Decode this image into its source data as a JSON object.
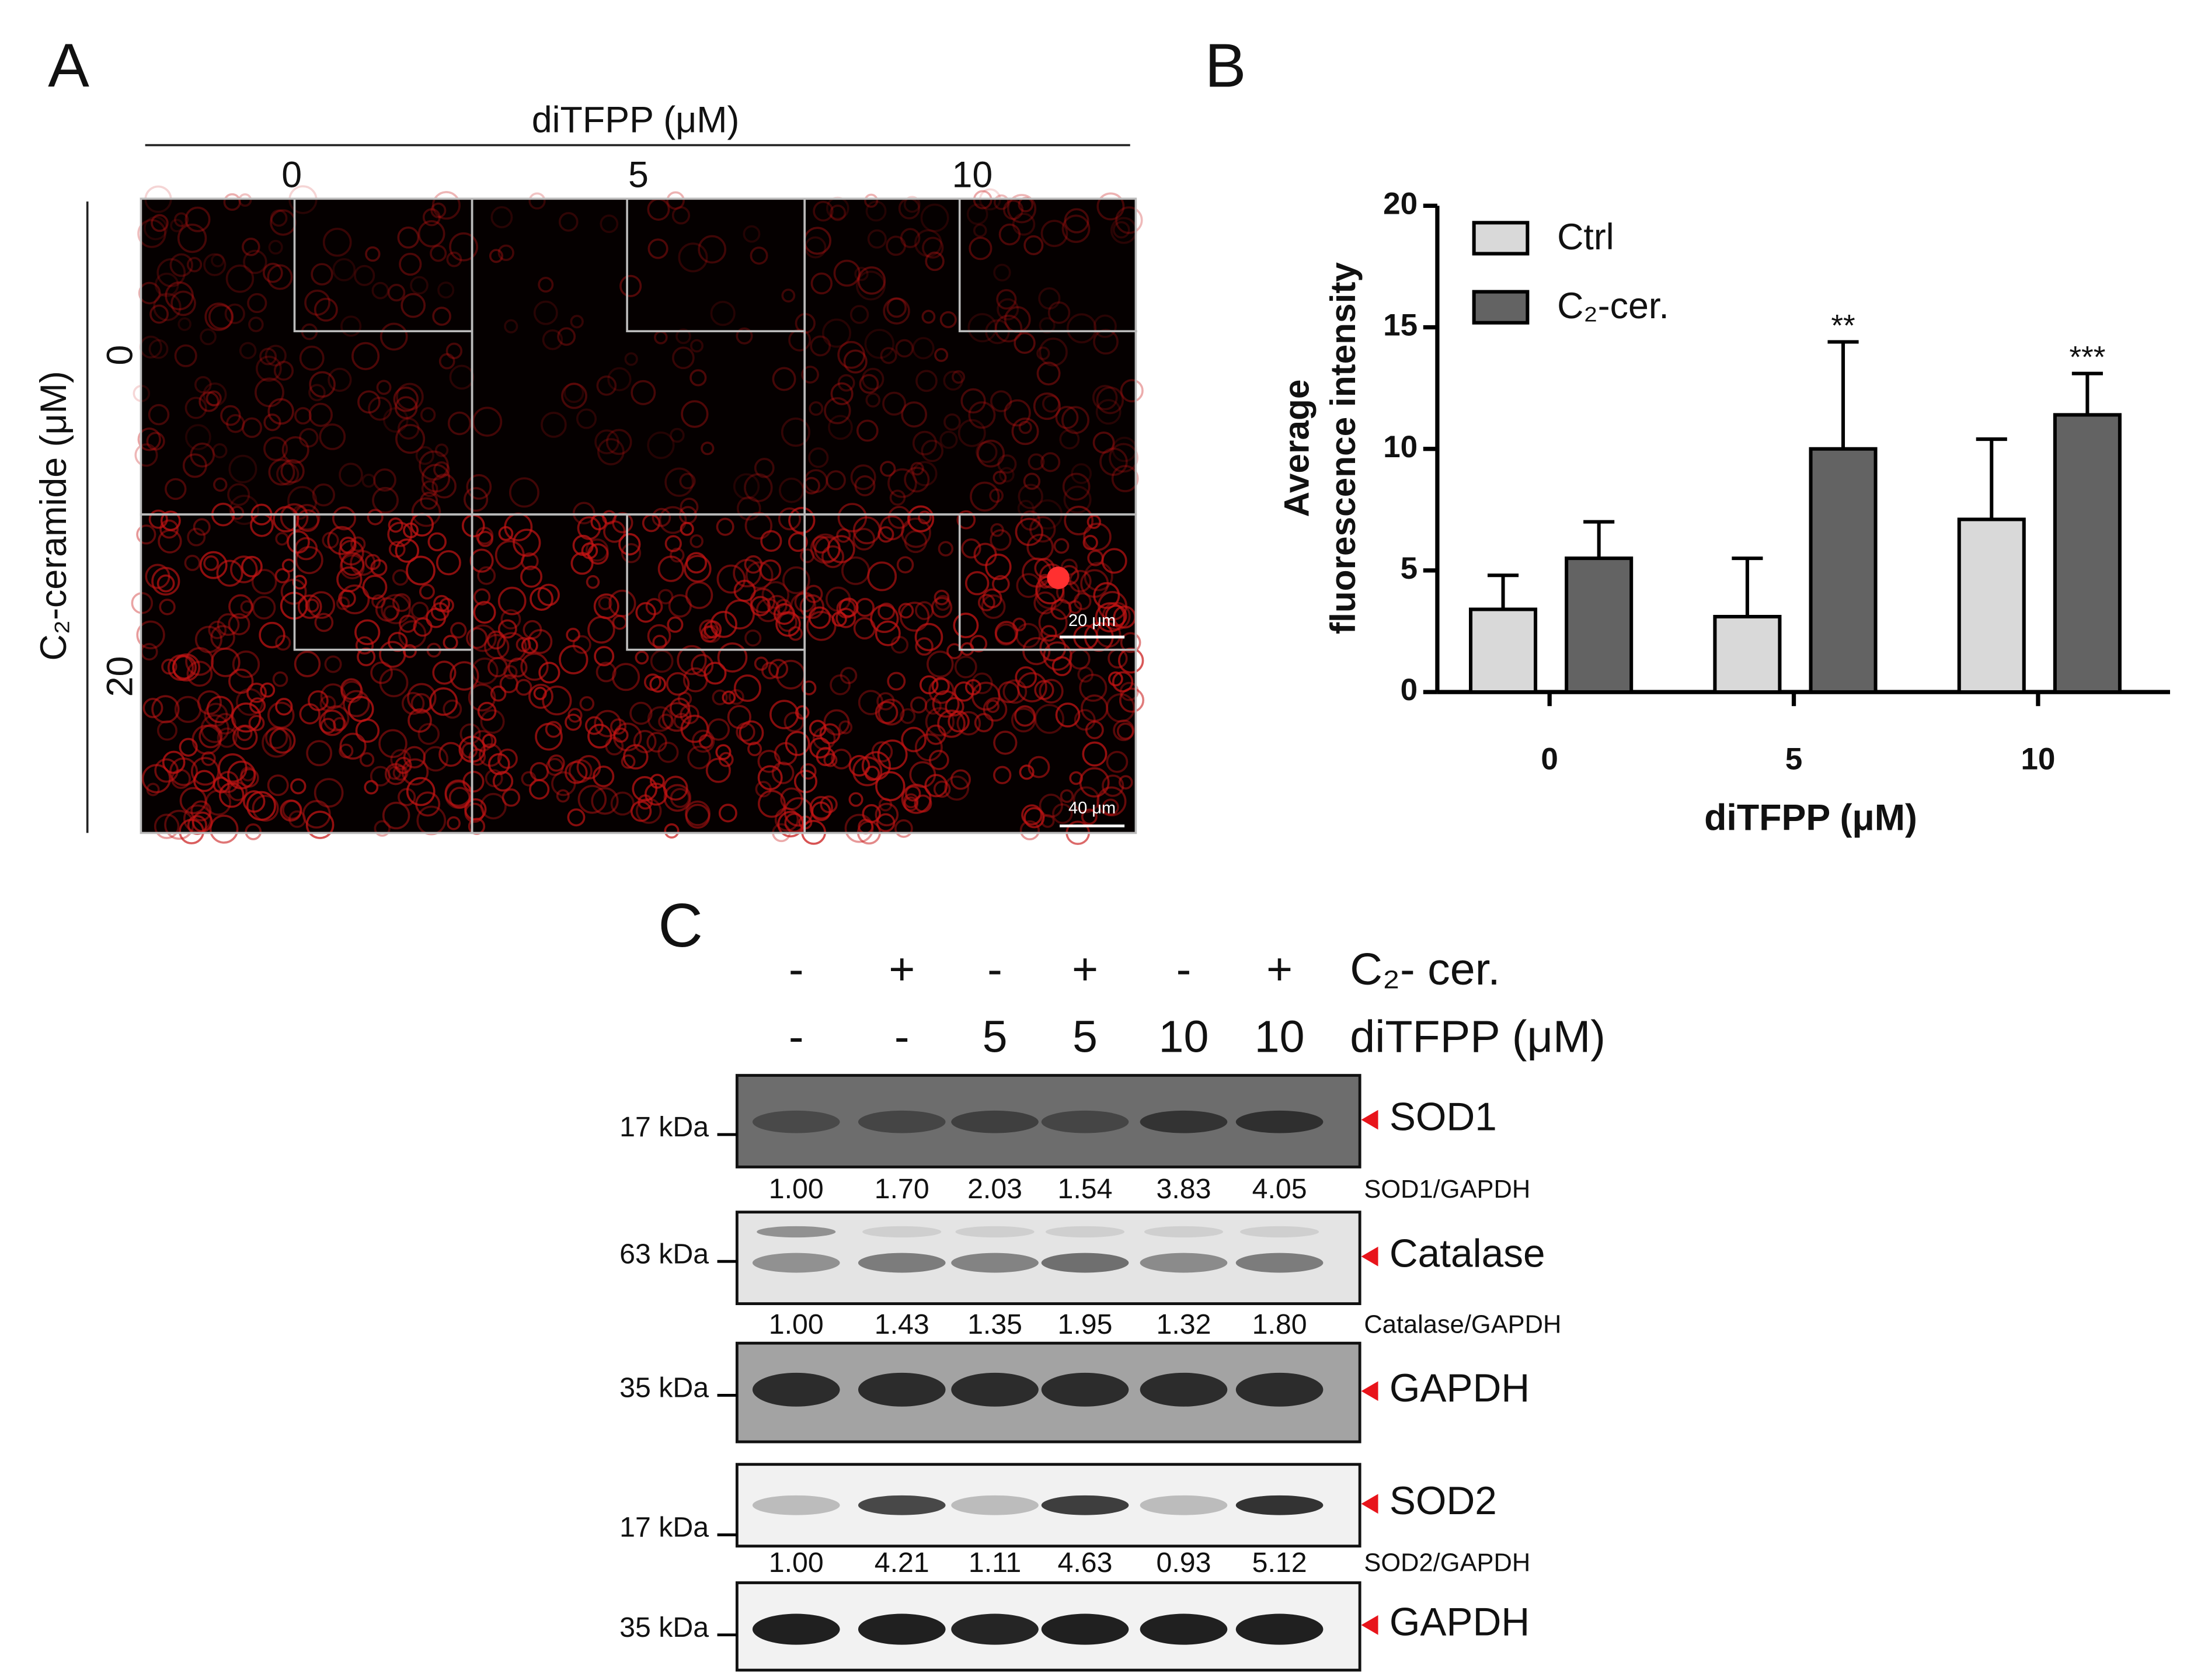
{
  "panel_a": {
    "label": "A",
    "column_title": "diTFPP (μM)",
    "columns": [
      "0",
      "5",
      "10"
    ],
    "row_title": "C₂-ceramide (μM)",
    "rows": [
      "0",
      "20"
    ],
    "inset_scale_bar": "20 μm",
    "scale_bar": "40 μm"
  },
  "chart_data": {
    "type": "bar",
    "panel_label": "B",
    "categories": [
      "0",
      "5",
      "10"
    ],
    "series": [
      {
        "name": "Ctrl",
        "color": "#d9d9d9",
        "values": [
          3.4,
          3.1,
          7.1
        ],
        "errors": [
          1.4,
          2.4,
          3.3
        ]
      },
      {
        "name": "C₂-cer.",
        "color": "#636363",
        "values": [
          5.5,
          10.0,
          11.4
        ],
        "errors": [
          1.5,
          4.4,
          1.7
        ],
        "annotations": [
          null,
          "**",
          "***"
        ]
      }
    ],
    "ylim": [
      0,
      20
    ],
    "yticks": [
      0,
      5,
      10,
      15,
      20
    ],
    "xlabel": "diTFPP (μM)",
    "ylabel": [
      "Average",
      "fluorescence intensity"
    ],
    "legend": "upper-left"
  },
  "panel_c": {
    "label": "C",
    "treatments": [
      {
        "label": "C₂- cer.",
        "lanes": [
          "-",
          "+",
          "-",
          "+",
          "-",
          "+"
        ]
      },
      {
        "label": "diTFPP (μM)",
        "lanes": [
          "-",
          "-",
          "5",
          "5",
          "10",
          "10"
        ]
      }
    ],
    "blots": [
      {
        "marker": "17 kDa",
        "protein": "SOD1",
        "ratio_label": "SOD1/GAPDH",
        "ratios": [
          "1.00",
          "1.70",
          "2.03",
          "1.54",
          "3.83",
          "4.05"
        ]
      },
      {
        "marker": "63 kDa",
        "protein": "Catalase",
        "ratio_label": "Catalase/GAPDH",
        "ratios": [
          "1.00",
          "1.43",
          "1.35",
          "1.95",
          "1.32",
          "1.80"
        ]
      },
      {
        "marker": "35 kDa",
        "protein": "GAPDH"
      },
      {
        "marker": "17 kDa",
        "protein": "SOD2",
        "ratio_label": "SOD2/GAPDH",
        "ratios": [
          "1.00",
          "4.21",
          "1.11",
          "4.63",
          "0.93",
          "5.12"
        ]
      },
      {
        "marker": "35 kDa",
        "protein": "GAPDH"
      }
    ]
  }
}
